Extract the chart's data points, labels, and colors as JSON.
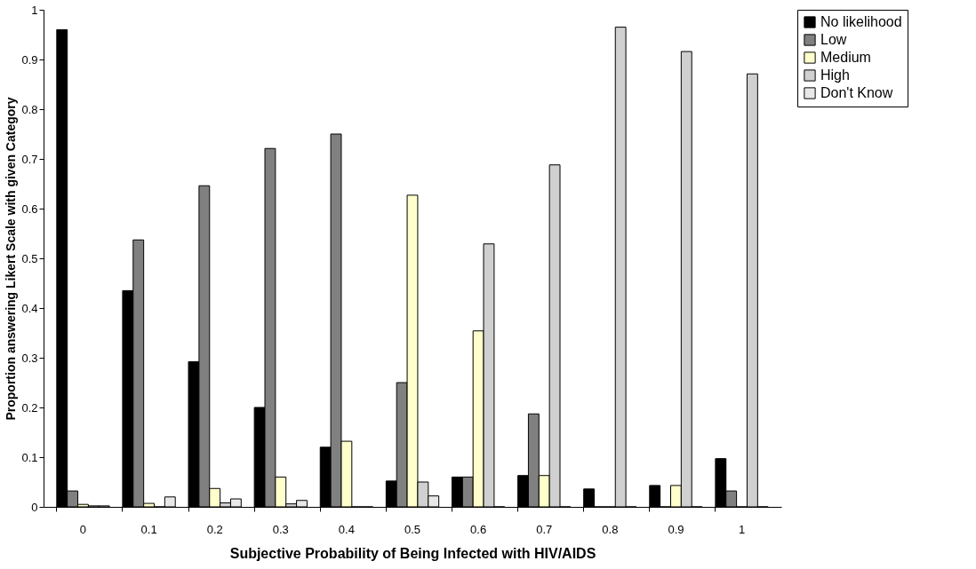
{
  "chart_data": {
    "type": "bar",
    "xlabel": "Subjective Probability of Being Infected with HIV/AIDS",
    "ylabel": "Proportion answering Likert Scale with given Category",
    "categories": [
      "0",
      "0.1",
      "0.2",
      "0.3",
      "0.4",
      "0.5",
      "0.6",
      "0.7",
      "0.8",
      "0.9",
      "1"
    ],
    "series": [
      {
        "name": "No likelihood",
        "color": "#000000",
        "values": [
          0.96,
          0.435,
          0.292,
          0.2,
          0.12,
          0.052,
          0.06,
          0.063,
          0.036,
          0.043,
          0.097
        ]
      },
      {
        "name": "Low",
        "color": "#808080",
        "values": [
          0.032,
          0.537,
          0.646,
          0.721,
          0.75,
          0.25,
          0.06,
          0.187,
          0,
          0,
          0.032
        ]
      },
      {
        "name": "Medium",
        "color": "#ffffcc",
        "values": [
          0.005,
          0.007,
          0.037,
          0.06,
          0.132,
          0.627,
          0.354,
          0.063,
          0,
          0.043,
          0
        ]
      },
      {
        "name": "High",
        "color": "#d0d0d0",
        "values": [
          0.002,
          0,
          0.008,
          0.006,
          0,
          0.05,
          0.529,
          0.688,
          0.965,
          0.916,
          0.871
        ]
      },
      {
        "name": "Don't Know",
        "color": "#e8e8e8",
        "values": [
          0.002,
          0.02,
          0.016,
          0.013,
          0,
          0.022,
          0,
          0,
          0,
          0,
          0
        ]
      }
    ],
    "ylim": [
      0,
      1
    ],
    "yticks": [
      0,
      0.1,
      0.2,
      0.3,
      0.4,
      0.5,
      0.6,
      0.7,
      0.8,
      0.9,
      1
    ],
    "grid": false,
    "legend": "right"
  }
}
